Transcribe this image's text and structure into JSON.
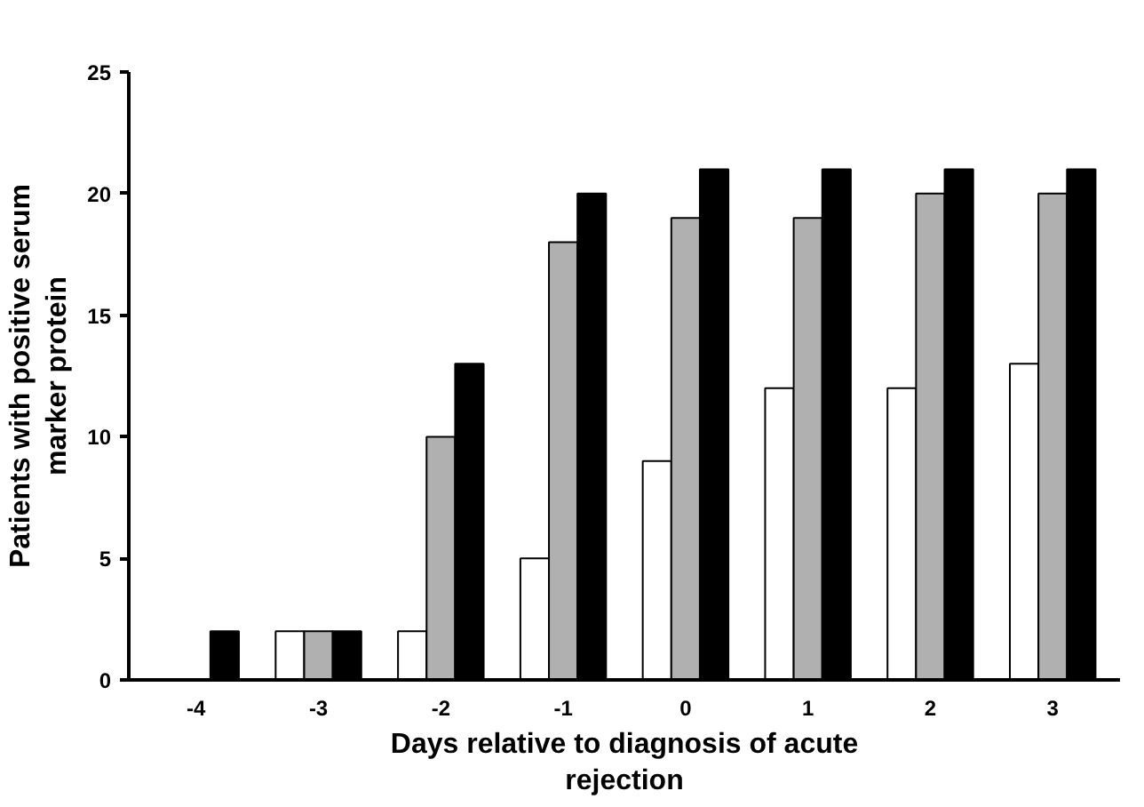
{
  "chart_data": {
    "type": "bar",
    "xlabel": "Days relative to diagnosis of acute\nrejection",
    "ylabel": "Patients with positive serum\nmarker protein",
    "categories": [
      "-4",
      "-3",
      "-2",
      "-1",
      "0",
      "1",
      "2",
      "3"
    ],
    "series": [
      {
        "color": "#ffffff",
        "values": [
          null,
          2,
          2,
          5,
          9,
          12,
          12,
          13
        ]
      },
      {
        "color": "#b0b0b0",
        "values": [
          null,
          2,
          10,
          18,
          19,
          19,
          20,
          20
        ]
      },
      {
        "color": "#000000",
        "values": [
          2,
          2,
          13,
          20,
          21,
          21,
          21,
          21
        ]
      }
    ],
    "ylim": [
      0,
      25
    ],
    "yticks": [
      0,
      5,
      10,
      15,
      20,
      25
    ],
    "grid": false
  }
}
